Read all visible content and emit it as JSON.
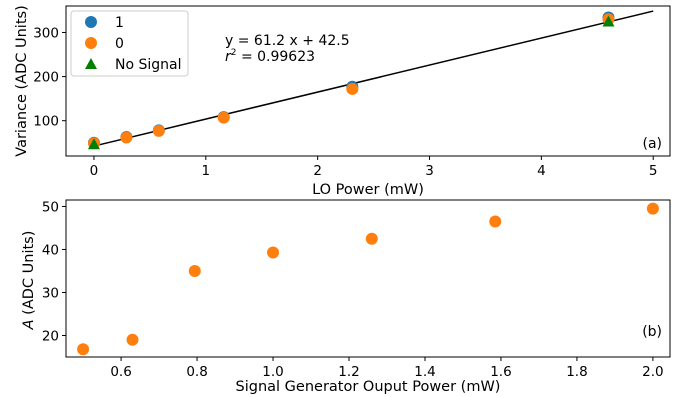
{
  "chart_data": [
    {
      "type": "scatter",
      "panel_tag": "(a)",
      "xlabel": "LO Power (mW)",
      "ylabel": "Variance (ADC Units)",
      "xlim": [
        -0.25,
        5.15
      ],
      "ylim": [
        20,
        360
      ],
      "xticks": [
        "0",
        "1",
        "2",
        "3",
        "4",
        "5"
      ],
      "yticks": [
        "100",
        "200",
        "300"
      ],
      "grid": false,
      "legend_position": "upper-left",
      "series": [
        {
          "name": "1",
          "color": "#1f77b4",
          "marker": "circle",
          "x": [
            0,
            0.29,
            0.58,
            1.16,
            2.31,
            4.6
          ],
          "y": [
            50,
            63,
            78,
            108,
            177,
            334
          ]
        },
        {
          "name": "0",
          "color": "#ff7f0e",
          "marker": "circle",
          "x": [
            0,
            0.29,
            0.58,
            1.16,
            2.31,
            4.6
          ],
          "y": [
            49,
            62,
            77,
            107,
            172,
            330
          ]
        },
        {
          "name": "No Signal",
          "color": "#008000",
          "marker": "triangle",
          "x": [
            0,
            4.6
          ],
          "y": [
            47,
            325
          ]
        }
      ],
      "fit_line": {
        "slope": 61.2,
        "intercept": 42.5,
        "x_range": [
          0,
          5
        ],
        "color": "#000000"
      },
      "fit_equation": "y = 61.2 x + 42.5",
      "r_squared_label": "r",
      "r_squared_exponent": "2",
      "r_squared_value": " = 0.99623"
    },
    {
      "type": "scatter",
      "panel_tag": "(b)",
      "xlabel": "Signal Generator Ouput Power (mW)",
      "ylabel_symbol": "A",
      "ylabel_rest": " (ADC Units)",
      "xlim": [
        0.455,
        2.045
      ],
      "ylim": [
        15,
        51.5
      ],
      "xticks": [
        "0.6",
        "0.8",
        "1.0",
        "1.2",
        "1.4",
        "1.6",
        "1.8",
        "2.0"
      ],
      "yticks": [
        "20",
        "30",
        "40",
        "50"
      ],
      "grid": false,
      "series": [
        {
          "color": "#ff7f0e",
          "marker": "circle",
          "x": [
            0.5,
            0.63,
            0.794,
            1.0,
            1.26,
            1.585,
            2.0
          ],
          "y": [
            16.8,
            19.0,
            35.0,
            39.3,
            42.5,
            46.5,
            49.5
          ]
        }
      ]
    }
  ]
}
